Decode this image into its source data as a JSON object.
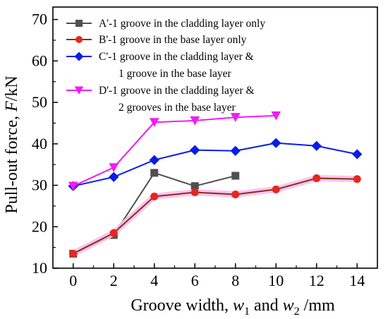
{
  "chart_data": {
    "type": "line",
    "xlabel": {
      "prefix": "Groove width, ",
      "var1": "w",
      "sub1": "1",
      "mid": " and ",
      "var2": "w",
      "sub2": "2",
      "suffix": " /mm"
    },
    "ylabel": {
      "prefix": "Pull-out force, ",
      "var": "F",
      "suffix": "/kN"
    },
    "xlim": [
      -1,
      15
    ],
    "ylim": [
      10,
      73
    ],
    "xticks": [
      0,
      2,
      4,
      6,
      8,
      10,
      12,
      14
    ],
    "yticks": [
      10,
      20,
      30,
      40,
      50,
      60,
      70
    ],
    "grid": false,
    "legend_position": "top-left",
    "series": [
      {
        "name_lines": [
          "A'-1 groove in the cladding layer only"
        ],
        "marker": "square",
        "color": "#505050",
        "x": [
          0,
          2,
          4,
          6,
          8
        ],
        "y": [
          13.5,
          18.0,
          33.0,
          29.8,
          32.3
        ]
      },
      {
        "name_lines": [
          "B'-1 groove in the base layer only"
        ],
        "marker": "circle",
        "color": "#e8261e",
        "line_color": "#8b2d10",
        "halo": "#f6bff0",
        "x": [
          0,
          2,
          4,
          6,
          8,
          10,
          12,
          14
        ],
        "y": [
          13.5,
          18.5,
          27.3,
          28.3,
          27.8,
          29.0,
          31.7,
          31.5
        ]
      },
      {
        "name_lines": [
          "C'-1 groove in the cladding layer &",
          "1 groove in the base layer"
        ],
        "marker": "diamond",
        "color": "#0a1de6",
        "x": [
          0,
          2,
          4,
          6,
          8,
          10,
          12,
          14
        ],
        "y": [
          29.8,
          32.0,
          36.1,
          38.5,
          38.3,
          40.2,
          39.5,
          37.5
        ]
      },
      {
        "name_lines": [
          "D'-1 groove in the cladding layer &",
          "2 grooves in the base layer"
        ],
        "marker": "triangle-down",
        "color": "#f21cf2",
        "x": [
          0,
          2,
          4,
          6,
          8,
          10
        ],
        "y": [
          29.8,
          34.3,
          45.2,
          45.6,
          46.4,
          46.8
        ]
      }
    ]
  }
}
